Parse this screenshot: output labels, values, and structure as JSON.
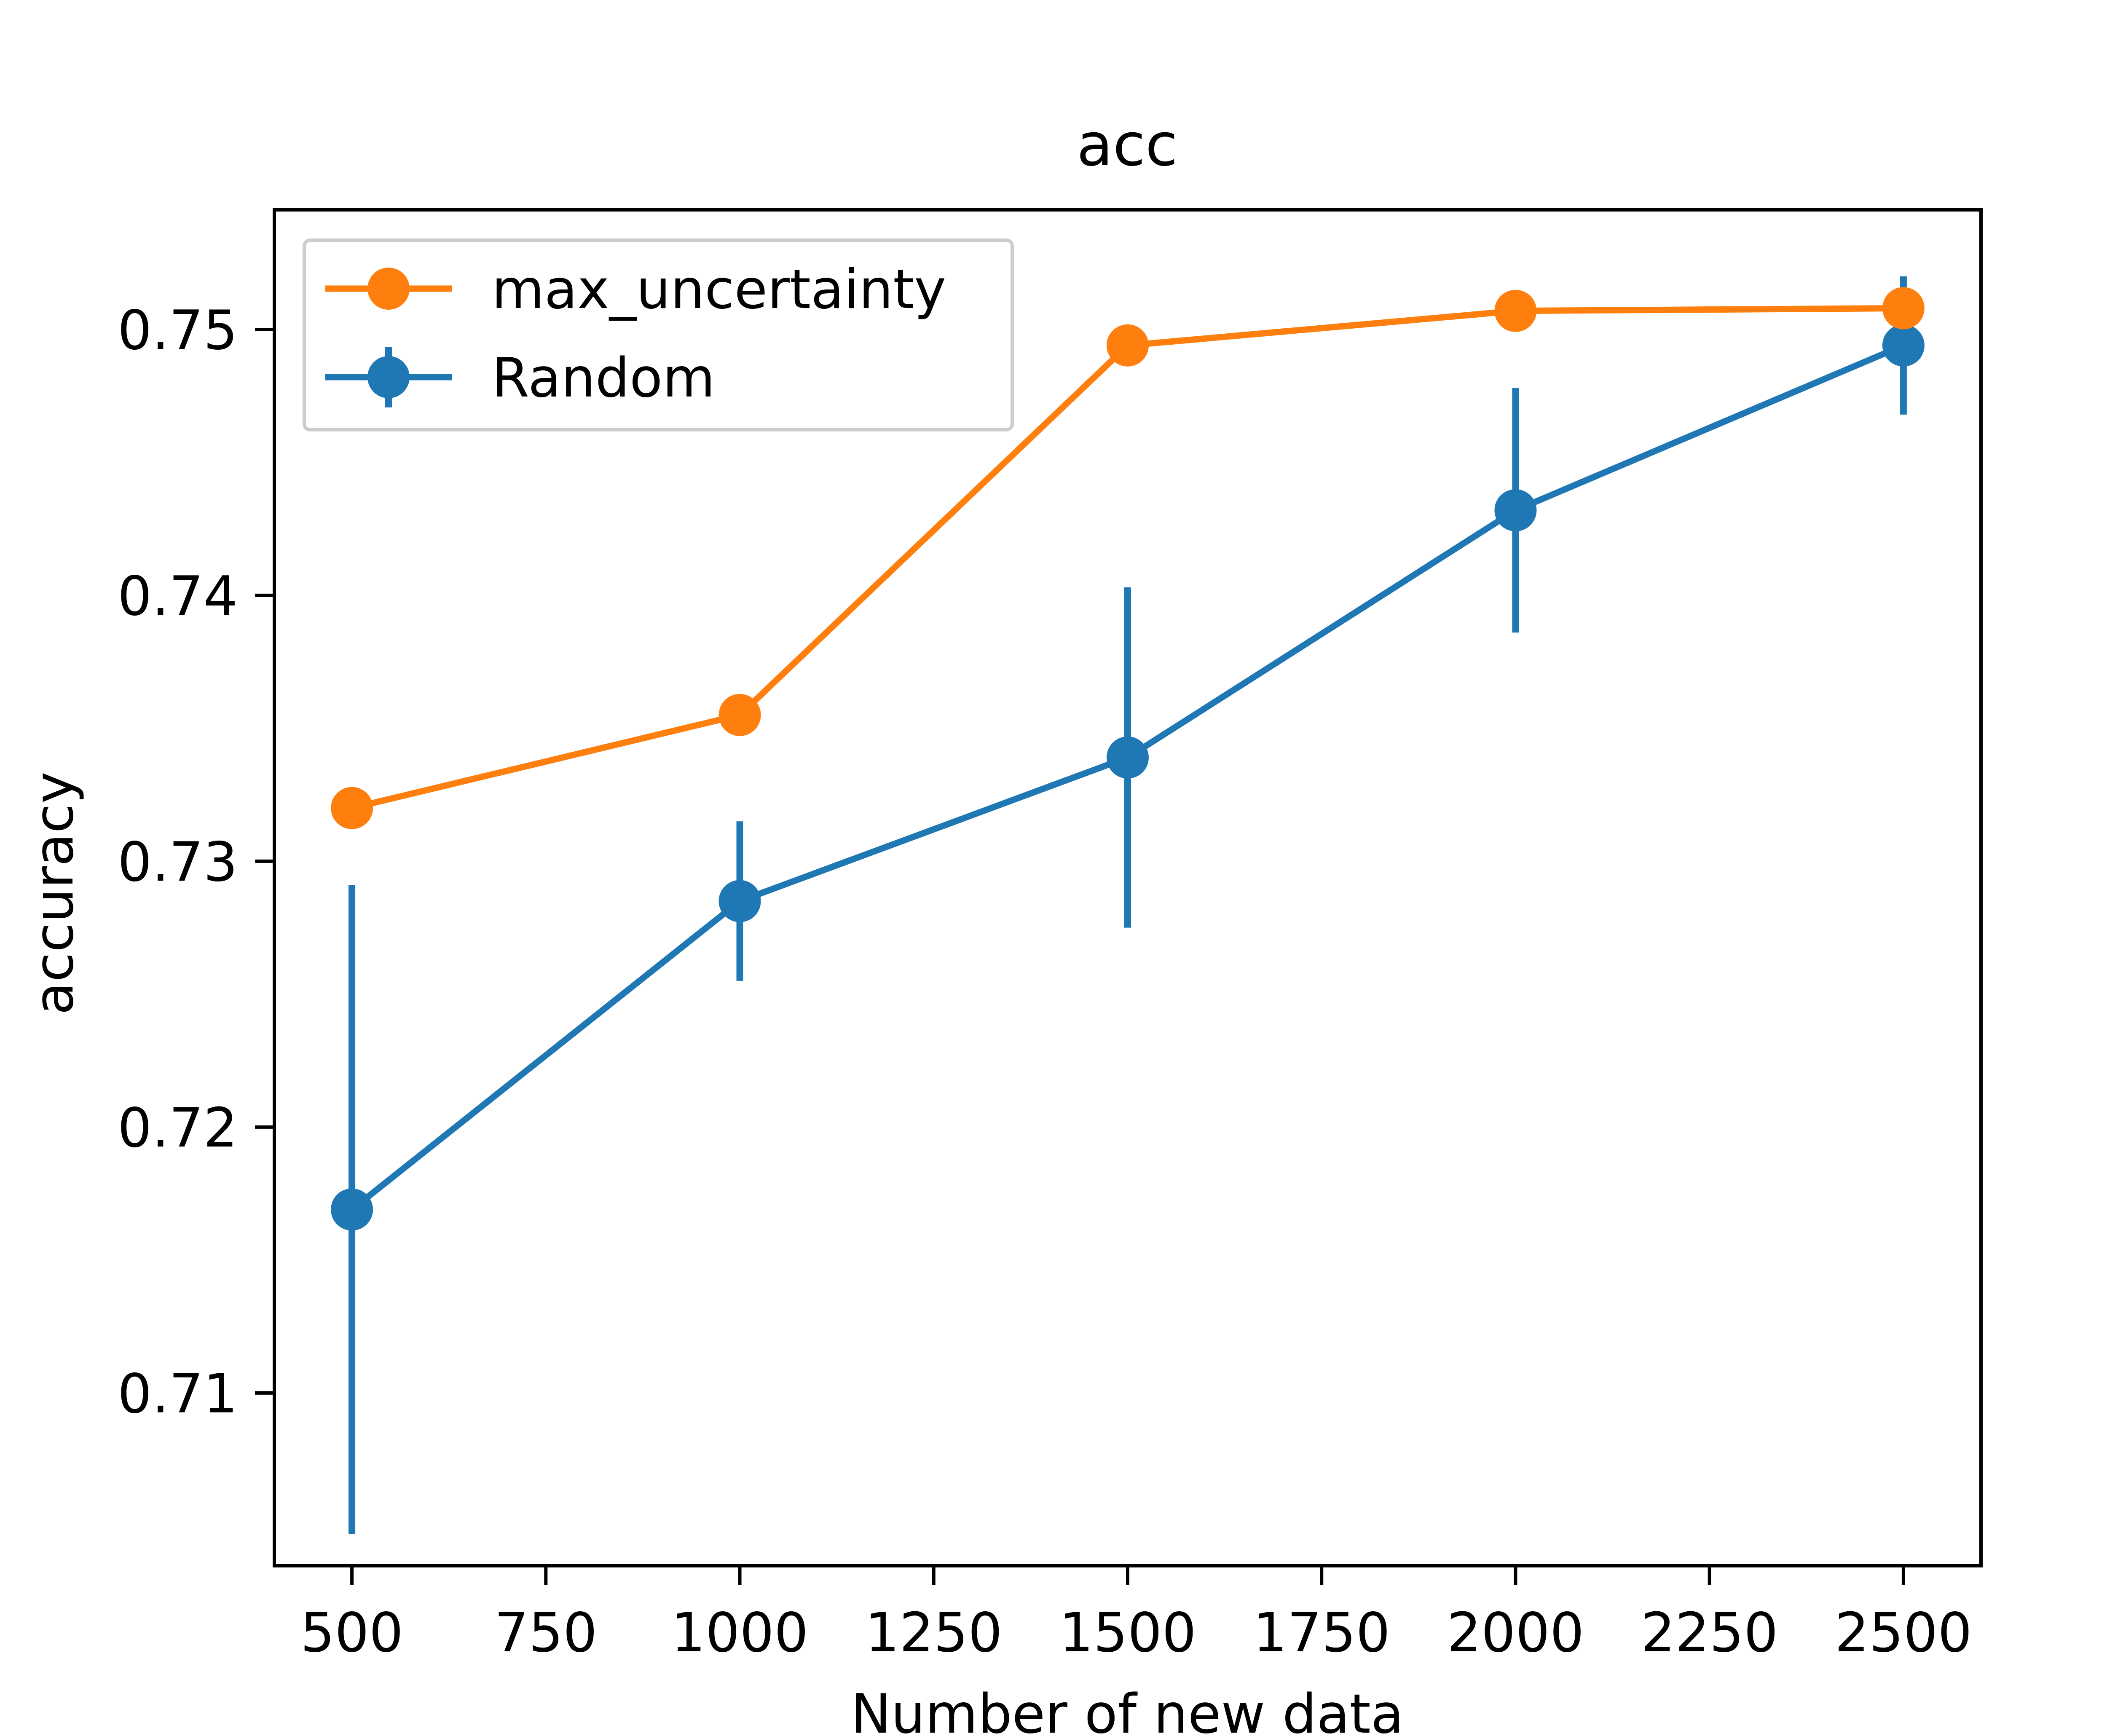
{
  "chart_data": {
    "type": "line",
    "title": "acc",
    "xlabel": "Number of new data",
    "ylabel": "accuracy",
    "xlim": [
      400,
      2600
    ],
    "ylim": [
      0.7035,
      0.7545
    ],
    "xticks": [
      500,
      750,
      1000,
      1250,
      1500,
      1750,
      2000,
      2250,
      2500
    ],
    "xtick_labels": [
      "500",
      "750",
      "1000",
      "1250",
      "1500",
      "1750",
      "2000",
      "2250",
      "2500"
    ],
    "yticks": [
      0.71,
      0.72,
      0.73,
      0.74,
      0.75
    ],
    "ytick_labels": [
      "0.71",
      "0.72",
      "0.73",
      "0.74",
      "0.75"
    ],
    "grid": false,
    "legend_position": "top-left",
    "x": [
      500,
      1000,
      1500,
      2000,
      2500
    ],
    "series": [
      {
        "name": "max_uncertainty",
        "color": "#ff7f0e",
        "values": [
          0.732,
          0.7355,
          0.7494,
          0.7507,
          0.7508
        ]
      },
      {
        "name": "Random",
        "color": "#1f77b4",
        "values": [
          0.7169,
          0.7285,
          0.7339,
          0.7432,
          0.7494
        ],
        "error": [
          0.0122,
          0.003,
          0.0064,
          0.0046,
          0.0026
        ]
      }
    ]
  }
}
